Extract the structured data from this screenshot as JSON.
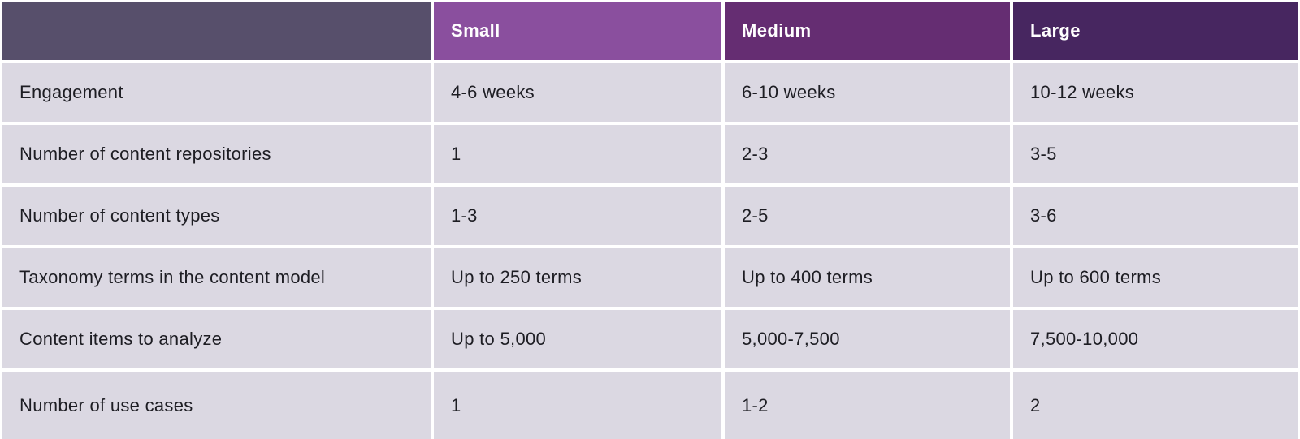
{
  "table": {
    "columns": [
      {
        "label": "",
        "color": "#574f6b"
      },
      {
        "label": "Small",
        "color": "#8a4f9e"
      },
      {
        "label": "Medium",
        "color": "#652d72"
      },
      {
        "label": "Large",
        "color": "#472660"
      }
    ],
    "rows": [
      {
        "label": "Engagement",
        "values": [
          "4-6 weeks",
          "6-10 weeks",
          "10-12 weeks"
        ]
      },
      {
        "label": "Number of content repositories",
        "values": [
          "1",
          "2-3",
          "3-5"
        ]
      },
      {
        "label": "Number of content types",
        "values": [
          "1-3",
          "2-5",
          "3-6"
        ]
      },
      {
        "label": "Taxonomy terms in the content model",
        "values": [
          "Up to 250 terms",
          "Up to 400 terms",
          "Up to 600 terms"
        ]
      },
      {
        "label": "Content items to analyze",
        "values": [
          "Up to 5,000",
          "5,000-7,500",
          "7,500-10,000"
        ]
      },
      {
        "label": "Number of use cases",
        "values": [
          "1",
          "1-2",
          "2"
        ]
      }
    ],
    "colors": {
      "body_cell": "#dbd8e2",
      "text": "#1d1d23",
      "header_text": "#ffffff",
      "grid_gap": "#ffffff"
    }
  }
}
